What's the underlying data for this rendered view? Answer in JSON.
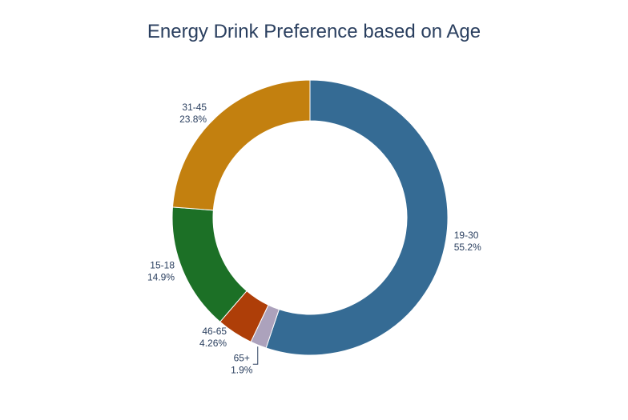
{
  "chart_data": {
    "type": "pie",
    "hole": true,
    "title": "Energy Drink Preference based on Age",
    "slices": [
      {
        "label": "19-30",
        "percent_label": "55.2%",
        "value": 55.2,
        "color": "#356b94"
      },
      {
        "label": "65+",
        "percent_label": "1.9%",
        "value": 1.9,
        "color": "#aca2bc"
      },
      {
        "label": "46-65",
        "percent_label": "4.26%",
        "value": 4.26,
        "color": "#ae3e08"
      },
      {
        "label": "15-18",
        "percent_label": "14.9%",
        "value": 14.9,
        "color": "#1c7026"
      },
      {
        "label": "31-45",
        "percent_label": "23.8%",
        "value": 23.8,
        "color": "#c3800f"
      }
    ]
  }
}
